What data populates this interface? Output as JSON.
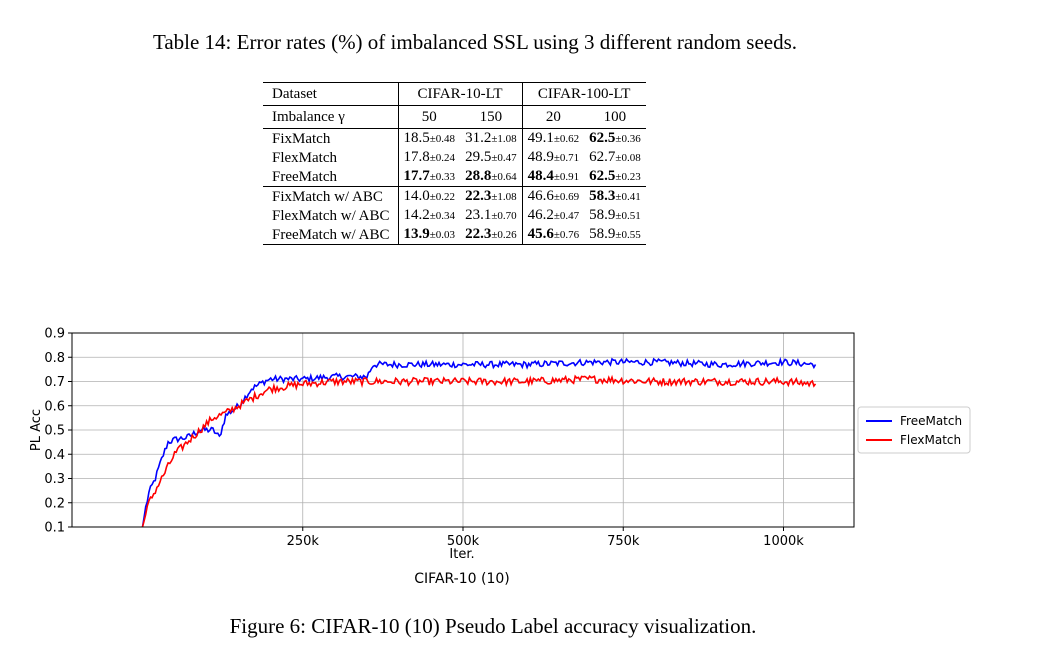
{
  "table": {
    "caption": "Table 14: Error rates (%) of imbalanced SSL using 3 different random seeds.",
    "header": {
      "dataset_label": "Dataset",
      "group1": "CIFAR-10-LT",
      "group2": "CIFAR-100-LT",
      "imbalance_label": "Imbalance γ",
      "gammas": [
        "50",
        "150",
        "20",
        "100"
      ]
    },
    "rows": [
      {
        "method": "FixMatch",
        "cells": [
          {
            "v": "18.5",
            "pm": "±0.48",
            "bold": false
          },
          {
            "v": "31.2",
            "pm": "±1.08",
            "bold": false
          },
          {
            "v": "49.1",
            "pm": "±0.62",
            "bold": false
          },
          {
            "v": "62.5",
            "pm": "±0.36",
            "bold": true
          }
        ]
      },
      {
        "method": "FlexMatch",
        "cells": [
          {
            "v": "17.8",
            "pm": "±0.24",
            "bold": false
          },
          {
            "v": "29.5",
            "pm": "±0.47",
            "bold": false
          },
          {
            "v": "48.9",
            "pm": "±0.71",
            "bold": false
          },
          {
            "v": "62.7",
            "pm": "±0.08",
            "bold": false
          }
        ]
      },
      {
        "method": "FreeMatch",
        "cells": [
          {
            "v": "17.7",
            "pm": "±0.33",
            "bold": true
          },
          {
            "v": "28.8",
            "pm": "±0.64",
            "bold": true
          },
          {
            "v": "48.4",
            "pm": "±0.91",
            "bold": true
          },
          {
            "v": "62.5",
            "pm": "±0.23",
            "bold": true
          }
        ]
      },
      {
        "method": "FixMatch w/ ABC",
        "cells": [
          {
            "v": "14.0",
            "pm": "±0.22",
            "bold": false
          },
          {
            "v": "22.3",
            "pm": "±1.08",
            "bold": true
          },
          {
            "v": "46.6",
            "pm": "±0.69",
            "bold": false
          },
          {
            "v": "58.3",
            "pm": "±0.41",
            "bold": true
          }
        ]
      },
      {
        "method": "FlexMatch w/ ABC",
        "cells": [
          {
            "v": "14.2",
            "pm": "±0.34",
            "bold": false
          },
          {
            "v": "23.1",
            "pm": "±0.70",
            "bold": false
          },
          {
            "v": "46.2",
            "pm": "±0.47",
            "bold": false
          },
          {
            "v": "58.9",
            "pm": "±0.51",
            "bold": false
          }
        ]
      },
      {
        "method": "FreeMatch w/ ABC",
        "cells": [
          {
            "v": "13.9",
            "pm": "±0.03",
            "bold": true
          },
          {
            "v": "22.3",
            "pm": "±0.26",
            "bold": true
          },
          {
            "v": "45.6",
            "pm": "±0.76",
            "bold": true
          },
          {
            "v": "58.9",
            "pm": "±0.55",
            "bold": false
          }
        ]
      }
    ]
  },
  "chart_data": {
    "type": "line",
    "title": "CIFAR-10 (10)",
    "xlabel": "Iter.",
    "ylabel": "PL Acc",
    "xlim": [
      -110000,
      1110000
    ],
    "ylim": [
      0.1,
      0.9
    ],
    "xticks": [
      250000,
      500000,
      750000,
      1000000
    ],
    "xtick_labels": [
      "250k",
      "500k",
      "750k",
      "1000k"
    ],
    "yticks": [
      0.1,
      0.2,
      0.3,
      0.4,
      0.5,
      0.6,
      0.7,
      0.8,
      0.9
    ],
    "ytick_labels": [
      "0.1",
      "0.2",
      "0.3",
      "0.4",
      "0.5",
      "0.6",
      "0.7",
      "0.8",
      "0.9"
    ],
    "grid": true,
    "legend_position": "outside-right",
    "series": [
      {
        "name": "FreeMatch",
        "color": "#0000ff",
        "x": [
          0,
          5000,
          10000,
          20000,
          30000,
          40000,
          50000,
          70000,
          90000,
          110000,
          120000,
          130000,
          150000,
          170000,
          190000,
          200000,
          250000,
          300000,
          350000,
          360000,
          400000,
          500000,
          600000,
          700000,
          800000,
          900000,
          1000000,
          1050000
        ],
        "y": [
          0.1,
          0.18,
          0.24,
          0.3,
          0.38,
          0.45,
          0.46,
          0.47,
          0.5,
          0.5,
          0.47,
          0.56,
          0.6,
          0.67,
          0.7,
          0.71,
          0.71,
          0.72,
          0.72,
          0.77,
          0.77,
          0.77,
          0.77,
          0.78,
          0.78,
          0.77,
          0.78,
          0.77
        ],
        "noise": 0.012
      },
      {
        "name": "FlexMatch",
        "color": "#ff0000",
        "x": [
          0,
          5000,
          10000,
          20000,
          30000,
          40000,
          50000,
          70000,
          90000,
          110000,
          130000,
          150000,
          170000,
          190000,
          200000,
          250000,
          300000,
          350000,
          400000,
          500000,
          600000,
          700000,
          800000,
          900000,
          1000000,
          1050000
        ],
        "y": [
          0.1,
          0.15,
          0.2,
          0.25,
          0.3,
          0.35,
          0.4,
          0.45,
          0.5,
          0.55,
          0.57,
          0.6,
          0.63,
          0.66,
          0.67,
          0.69,
          0.7,
          0.7,
          0.7,
          0.7,
          0.7,
          0.71,
          0.7,
          0.7,
          0.7,
          0.69
        ],
        "noise": 0.014
      }
    ]
  },
  "figure": {
    "caption": "Figure 6: CIFAR-10 (10) Pseudo Label accuracy visualization."
  }
}
